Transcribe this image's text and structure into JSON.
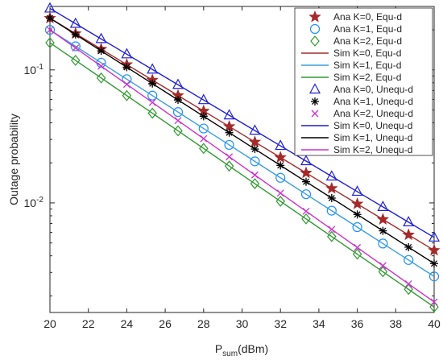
{
  "chart_data": {
    "type": "line",
    "ylabel": "Outage probability",
    "xlabel_main": "P",
    "xlabel_sub": "sum",
    "xlabel_unit": "(dBm)",
    "x_scale": "linear",
    "y_scale": "log",
    "xlim": [
      20,
      40
    ],
    "ylim": [
      0.0015,
      0.3
    ],
    "grid": false,
    "legend_position": "top-right",
    "x_ticks": [
      "20",
      "22",
      "24",
      "26",
      "28",
      "30",
      "32",
      "34",
      "36",
      "38",
      "40"
    ],
    "y_ticks": [
      {
        "value": 0.01,
        "base": "10",
        "exp": "-2"
      },
      {
        "value": 0.1,
        "base": "10",
        "exp": "-1"
      }
    ],
    "x": [
      20,
      21.333,
      22.667,
      24,
      25.333,
      26.667,
      28,
      29.333,
      30.667,
      32,
      33.333,
      34.667,
      36,
      37.333,
      38.667,
      40
    ],
    "series": [
      {
        "name": "Ana K=0, Equ-d",
        "color": "#a52a2a",
        "marker": "star",
        "line": false,
        "y_start": 0.245,
        "y_end": 0.0044
      },
      {
        "name": "Ana K=1, Equ-d",
        "color": "#1e90ff",
        "marker": "circle",
        "line": false,
        "y_start": 0.2,
        "y_end": 0.0028
      },
      {
        "name": "Ana K=2, Equ-d",
        "color": "#2e9a2e",
        "marker": "diamond",
        "line": false,
        "y_start": 0.16,
        "y_end": 0.00165
      },
      {
        "name": "Sim K=0, Equ-d",
        "color": "#a52a2a",
        "marker": "none",
        "line": true,
        "y_start": 0.245,
        "y_end": 0.0044
      },
      {
        "name": "Sim K=1, Equ-d",
        "color": "#3a9ee0",
        "marker": "none",
        "line": true,
        "y_start": 0.2,
        "y_end": 0.0028
      },
      {
        "name": "Sim K=2, Equ-d",
        "color": "#2e9a2e",
        "marker": "none",
        "line": true,
        "y_start": 0.16,
        "y_end": 0.00165
      },
      {
        "name": "Ana K=0, Unequ-d",
        "color": "#1f1fd0",
        "marker": "triangle",
        "line": false,
        "y_start": 0.29,
        "y_end": 0.0055
      },
      {
        "name": "Ana K=1, Unequ-d",
        "color": "#000000",
        "marker": "asterisk",
        "line": false,
        "y_start": 0.245,
        "y_end": 0.0035
      },
      {
        "name": "Ana K=2, Unequ-d",
        "color": "#cc33cc",
        "marker": "x",
        "line": false,
        "y_start": 0.2,
        "y_end": 0.0018
      },
      {
        "name": "Sim K=0, Unequ-d",
        "color": "#1f1fd0",
        "marker": "none",
        "line": true,
        "y_start": 0.29,
        "y_end": 0.0055
      },
      {
        "name": "Sim K=1, Unequ-d",
        "color": "#000000",
        "marker": "none",
        "line": true,
        "y_start": 0.245,
        "y_end": 0.0035
      },
      {
        "name": "Sim K=2, Unequ-d",
        "color": "#cc33cc",
        "marker": "none",
        "line": true,
        "y_start": 0.2,
        "y_end": 0.0018
      }
    ]
  }
}
